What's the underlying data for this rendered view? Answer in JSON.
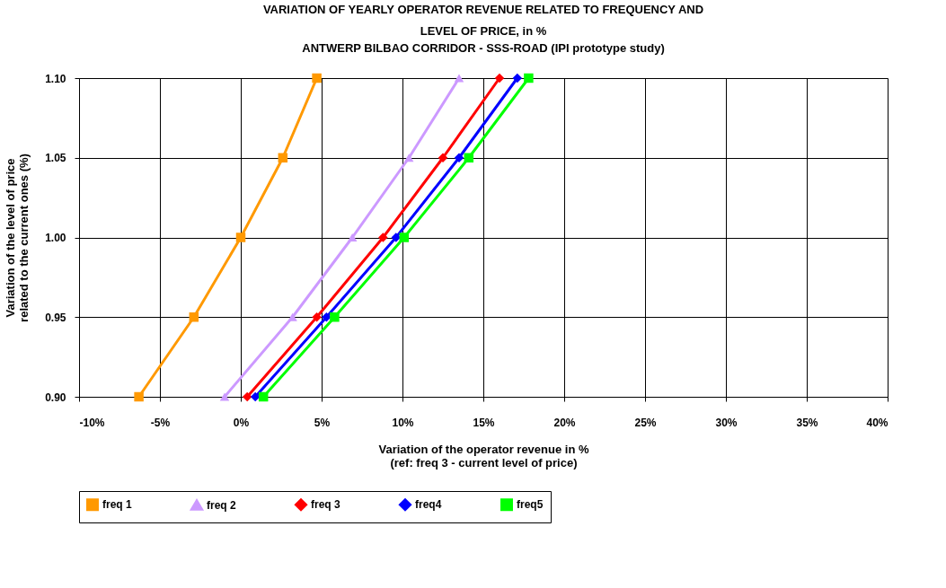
{
  "chart_data": {
    "type": "line",
    "title": "VARIATION OF YEARLY OPERATOR REVENUE RELATED TO FREQUENCY AND\nLEVEL OF PRICE, in %",
    "subtitle": "ANTWERP BILBAO CORRIDOR - SSS-ROAD (IPI prototype study)",
    "xlabel": "Variation of the operator revenue in %\n(ref: freq 3 - current level of price)",
    "ylabel": "Variation of the level of price\nrelated to the current ones (%)",
    "xlim": [
      -10,
      40
    ],
    "ylim": [
      0.9,
      1.1
    ],
    "xticks": [
      {
        "value": -10,
        "label": "-10%"
      },
      {
        "value": -5,
        "label": "-5%"
      },
      {
        "value": 0,
        "label": "0%"
      },
      {
        "value": 5,
        "label": "5%"
      },
      {
        "value": 10,
        "label": "10%"
      },
      {
        "value": 15,
        "label": "15%"
      },
      {
        "value": 20,
        "label": "20%"
      },
      {
        "value": 25,
        "label": "25%"
      },
      {
        "value": 30,
        "label": "30%"
      },
      {
        "value": 35,
        "label": "35%"
      },
      {
        "value": 40,
        "label": "40%"
      }
    ],
    "yticks": [
      {
        "value": 0.9,
        "label": "0.90"
      },
      {
        "value": 0.95,
        "label": "0.95"
      },
      {
        "value": 1.0,
        "label": "1.00"
      },
      {
        "value": 1.05,
        "label": "1.05"
      },
      {
        "value": 1.1,
        "label": "1.10"
      }
    ],
    "grid": true,
    "legend": "bottom",
    "line_style": "solid",
    "series": [
      {
        "name": "freq 1",
        "color": "#ff9900",
        "marker": "square",
        "x": [
          -6.3,
          -2.9,
          0.0,
          2.6,
          4.7
        ],
        "values": [
          0.9,
          0.95,
          1.0,
          1.05,
          1.1
        ]
      },
      {
        "name": "freq 2",
        "color": "#cc99ff",
        "marker": "triangle",
        "x": [
          -1.0,
          3.2,
          6.9,
          10.4,
          13.5
        ],
        "values": [
          0.9,
          0.95,
          1.0,
          1.05,
          1.1
        ]
      },
      {
        "name": "freq 3",
        "color": "#ff0000",
        "marker": "diamond",
        "x": [
          0.4,
          4.7,
          8.8,
          12.5,
          16.0
        ],
        "values": [
          0.9,
          0.95,
          1.0,
          1.05,
          1.1
        ]
      },
      {
        "name": "freq4",
        "color": "#0000ff",
        "marker": "diamond",
        "x": [
          0.9,
          5.3,
          9.6,
          13.5,
          17.1
        ],
        "values": [
          0.9,
          0.95,
          1.0,
          1.05,
          1.1
        ]
      },
      {
        "name": "freq5",
        "color": "#00ff00",
        "marker": "square",
        "x": [
          1.4,
          5.8,
          10.1,
          14.1,
          17.8
        ],
        "values": [
          0.9,
          0.95,
          1.0,
          1.05,
          1.1
        ]
      }
    ]
  }
}
